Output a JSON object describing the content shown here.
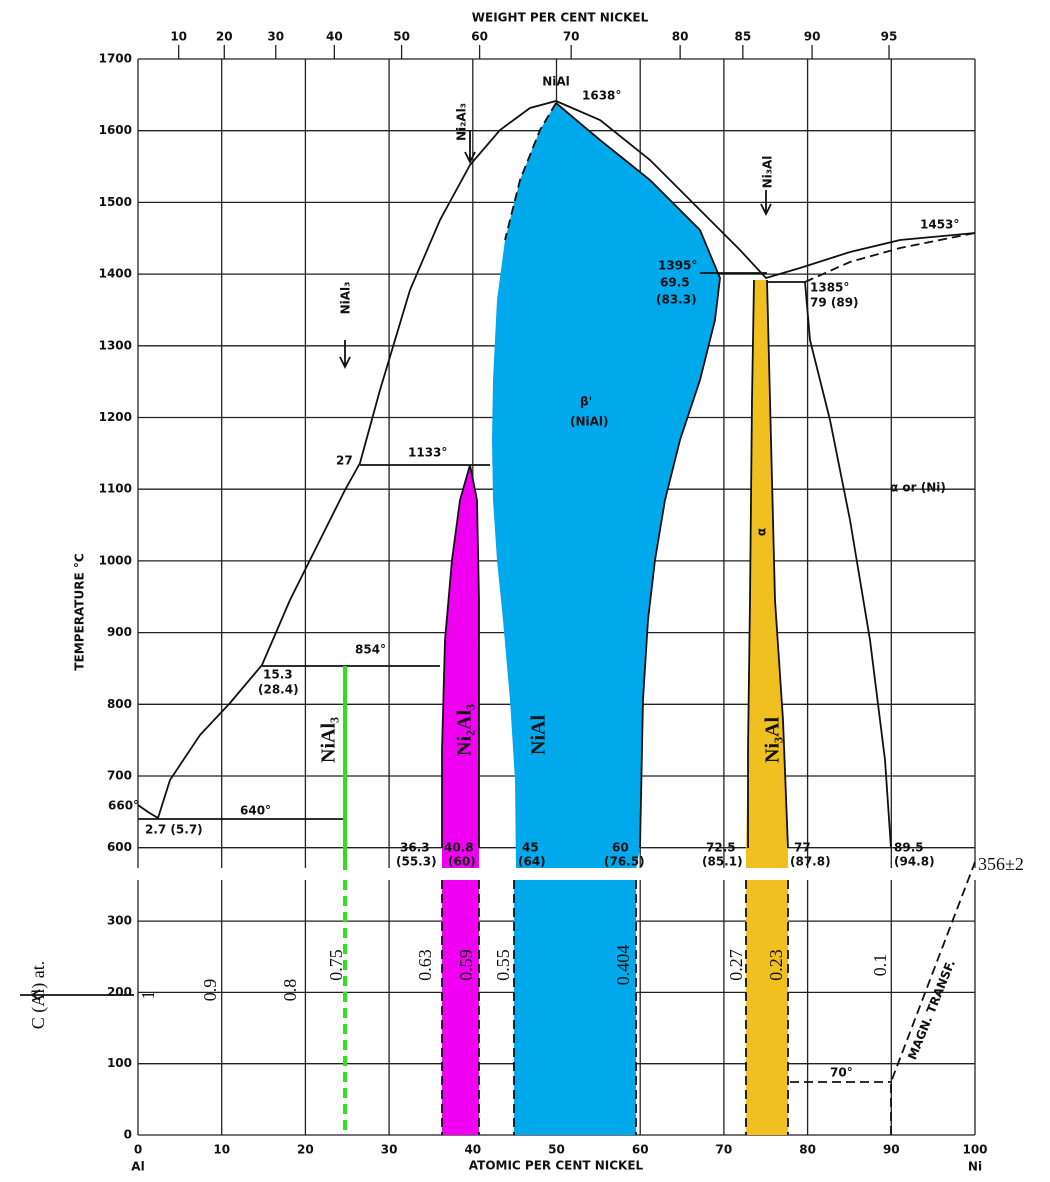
{
  "top_axis": {
    "title": "WEIGHT PER CENT NICKEL",
    "ticks": [
      10,
      20,
      30,
      40,
      50,
      60,
      70,
      80,
      85,
      90,
      95
    ]
  },
  "bottom_axis": {
    "title": "ATOMIC PER CENT NICKEL",
    "ticks": [
      0,
      10,
      20,
      30,
      40,
      50,
      60,
      70,
      80,
      90,
      100
    ],
    "left_end": "Al",
    "right_end": "Ni"
  },
  "temperature_axis": {
    "title": "TEMPERATURE °C",
    "ticks": [
      600,
      700,
      800,
      900,
      1000,
      1100,
      1200,
      1300,
      1400,
      1500,
      1600,
      1700
    ]
  },
  "lower_axis": {
    "title": "C (Al) at.",
    "ticks": [
      0,
      100,
      200,
      300
    ]
  },
  "annotations": {
    "nial_top": "NiAl",
    "t1638": "1638°",
    "ni2al3_arrow": "Ni₂Al₃",
    "ni3al_arrow": "Ni₃Al",
    "nial3_arrow": "NiAl₃",
    "t1453": "1453°",
    "t1395": "1395°",
    "c695": "69.5",
    "c833": "(83.3)",
    "t1385": "1385°",
    "c79": "79 (89)",
    "beta": "β'",
    "beta_sub": "(NiAl)",
    "c27": "27",
    "t1133": "1133°",
    "alpha_ni": "α or (Ni)",
    "alpha": "α",
    "c153": "15.3",
    "c284": "(28.4)",
    "t854": "854°",
    "t660": "660°",
    "t640": "640°",
    "c27b": "2.7 (5.7)",
    "c363": "36.3",
    "c553": "(55.3)",
    "c408": "40.8",
    "c60w": "(60)",
    "c45": "45",
    "c64": "(64)",
    "c60": "60",
    "c765": "(76.5)",
    "c725": "72.5",
    "c851": "(85.1)",
    "c77": "77",
    "c878": "(87.8)",
    "c895": "89.5",
    "c948": "(94.8)",
    "region_nial3": "NiAl₃",
    "region_ni2al3": "Ni₂Al₃",
    "region_nial": "NiAl",
    "region_ni3al": "Ni₃Al",
    "l1": "1",
    "l09": "0.9",
    "l08": "0.8",
    "l075": "0.75",
    "l063": "0.63",
    "l059": "0.59",
    "l055": "0.55",
    "l0404": "0.404",
    "l027": "0.27",
    "l023": "0.23",
    "l01": "0.1",
    "magn": "MAGN. TRANSF.",
    "t70": "70°",
    "tc356": "356±2"
  }
}
